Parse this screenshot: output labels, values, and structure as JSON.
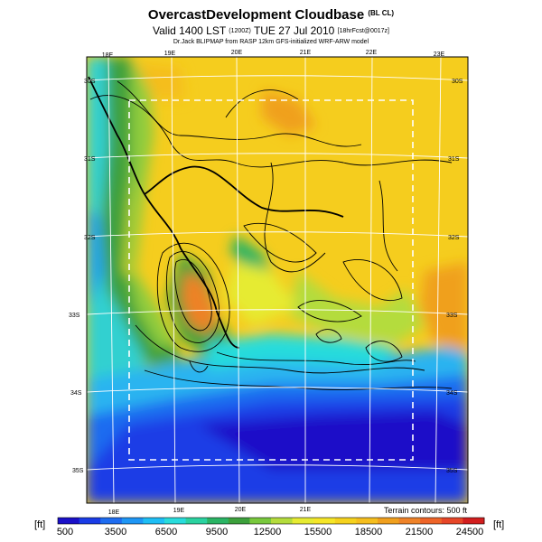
{
  "header": {
    "title": "OvercastDevelopment Cloudbase",
    "title_tag": "(BL CL)",
    "valid_main": "Valid 1400 LST",
    "valid_z": "(1200Z)",
    "valid_date": "TUE 27 Jul 2010",
    "valid_fcst": "[18hrFcst@0017z]",
    "subtitle": "Dr.Jack BLIPMAP from RASP 12km GFS-initialized WRF-ARW model"
  },
  "map": {
    "lon_labels_top": [
      "18E",
      "19E",
      "20E",
      "21E",
      "22E",
      "23E"
    ],
    "lon_labels_bottom": [
      "18E",
      "19E",
      "20E",
      "21E"
    ],
    "lat_labels_left": [
      "30S",
      "31S",
      "32S",
      "33S",
      "34S",
      "35S"
    ],
    "lat_labels_right": [
      "30S",
      "31S",
      "32S",
      "33S",
      "34S",
      "35S"
    ],
    "terrain_note": "Terrain contours: 500 ft"
  },
  "colorbar": {
    "unit_left": "[ft]",
    "unit_right": "[ft]",
    "labels": [
      "500",
      "3500",
      "6500",
      "9500",
      "12500",
      "15500",
      "18500",
      "21500",
      "24500"
    ],
    "colors": [
      "#1a10c8",
      "#1a3ce6",
      "#1e6cf0",
      "#1e96f5",
      "#1ebef5",
      "#28dcdc",
      "#2ad2a0",
      "#2ab464",
      "#3ca03c",
      "#78c83c",
      "#b4dc3c",
      "#e6eb32",
      "#f5e628",
      "#f5d21e",
      "#f5be1e",
      "#f0a01e",
      "#ee8228",
      "#ee6428",
      "#e64628",
      "#d21e1e"
    ]
  }
}
